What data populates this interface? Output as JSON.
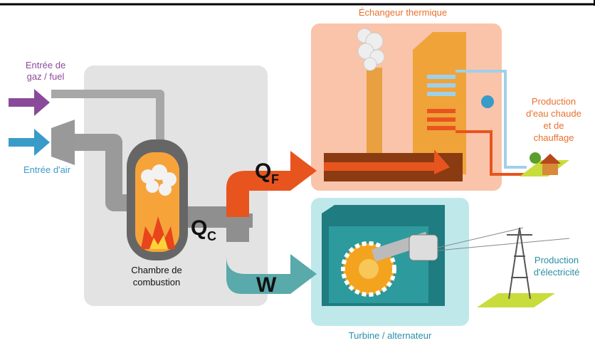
{
  "labels": {
    "heat_exchanger": "Échangeur thermique",
    "gas_input": {
      "lines": [
        "Entrée de",
        "gaz / fuel"
      ]
    },
    "air_input": "Entrée d'air",
    "hot_water": {
      "lines": [
        "Production",
        "d'eau chaude",
        "et de",
        "chauffage"
      ]
    },
    "q_f": {
      "symbol": "Q",
      "subscript": "F"
    },
    "q_c": {
      "symbol": "Q",
      "subscript": "C"
    },
    "work": "W",
    "combustion": {
      "lines": [
        "Chambre de",
        "combustion"
      ]
    },
    "electricity": {
      "lines": [
        "Production",
        "d'électricité"
      ]
    },
    "turbine": "Turbine / alternateur"
  }
}
